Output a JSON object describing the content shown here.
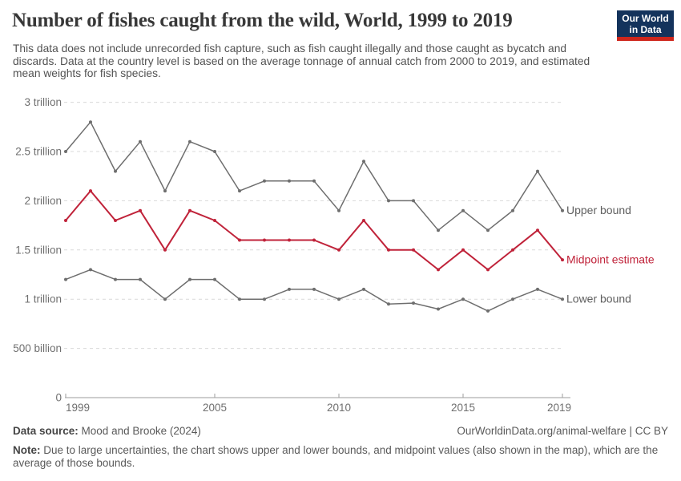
{
  "header": {
    "title": "Number of fishes caught from the wild, World, 1999 to 2019",
    "subtitle": "This data does not include unrecorded fish capture, such as fish caught illegally and those caught as bycatch and discards. Data at the country level is based on the average tonnage of annual catch from 2000 to 2019, and estimated mean weights for fish species.",
    "logo": {
      "line1": "Our World",
      "line2": "in Data",
      "bg_color": "#14335c",
      "stripe_color": "#ce261c"
    }
  },
  "chart_data": {
    "type": "line",
    "title": "Number of fishes caught from the wild, World, 1999 to 2019",
    "unit": "fishes per year",
    "grid": "horizontal-dashed",
    "legend_position": "right-end-labels",
    "x": [
      1999,
      2000,
      2001,
      2002,
      2003,
      2004,
      2005,
      2006,
      2007,
      2008,
      2009,
      2010,
      2011,
      2012,
      2013,
      2014,
      2015,
      2016,
      2017,
      2018,
      2019
    ],
    "xticks": [
      1999,
      2005,
      2010,
      2015,
      2019
    ],
    "ylim_trillions": [
      0,
      3
    ],
    "yticks": [
      {
        "label": "0",
        "value": 0
      },
      {
        "label": "500 billion",
        "value": 0.5
      },
      {
        "label": "1 trillion",
        "value": 1
      },
      {
        "label": "1.5 trillion",
        "value": 1.5
      },
      {
        "label": "2 trillion",
        "value": 2
      },
      {
        "label": "2.5 trillion",
        "value": 2.5
      },
      {
        "label": "3 trillion",
        "value": 3
      }
    ],
    "series": [
      {
        "name": "Upper bound",
        "color": "#6e6e6e",
        "label_color": "#5f5f5f",
        "values_trillions": [
          2.5,
          2.8,
          2.3,
          2.6,
          2.1,
          2.6,
          2.5,
          2.1,
          2.2,
          2.2,
          2.2,
          1.9,
          2.4,
          2.0,
          2.0,
          1.7,
          1.9,
          1.7,
          1.9,
          2.3,
          1.9
        ]
      },
      {
        "name": "Midpoint estimate",
        "color": "#c0233a",
        "label_color": "#c0233a",
        "values_trillions": [
          1.8,
          2.1,
          1.8,
          1.9,
          1.5,
          1.9,
          1.8,
          1.6,
          1.6,
          1.6,
          1.6,
          1.5,
          1.8,
          1.5,
          1.5,
          1.3,
          1.5,
          1.3,
          1.5,
          1.7,
          1.4
        ]
      },
      {
        "name": "Lower bound",
        "color": "#6e6e6e",
        "label_color": "#5f5f5f",
        "values_trillions": [
          1.2,
          1.3,
          1.2,
          1.2,
          1.0,
          1.2,
          1.2,
          1.0,
          1.0,
          1.1,
          1.1,
          1.0,
          1.1,
          0.95,
          0.96,
          0.9,
          1.0,
          0.88,
          1.0,
          1.1,
          1.0
        ]
      }
    ],
    "gridline_color": "#d9d9d9",
    "axis_line_color": "#9e9e9e",
    "tick_label_color": "#6f6f6f"
  },
  "footer": {
    "data_source_label": "Data source:",
    "data_source_text": "Mood and Brooke (2024)",
    "link": "OurWorldinData.org/animal-welfare | CC BY",
    "note_label": "Note:",
    "note_text": "Due to large uncertainties, the chart shows upper and lower bounds, and midpoint values (also shown in the map), which are the average of those bounds."
  }
}
